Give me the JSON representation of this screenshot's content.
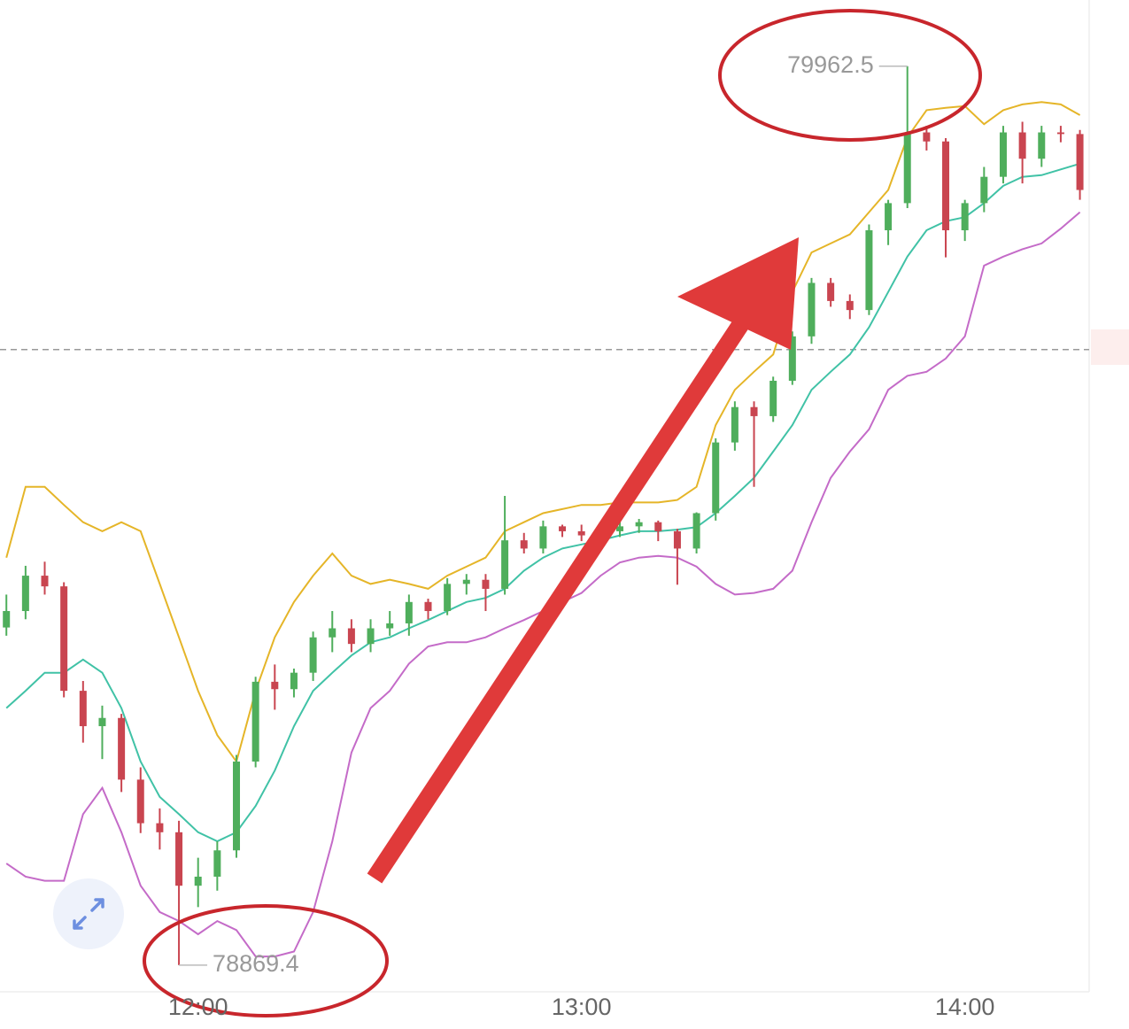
{
  "chart_data": {
    "type": "candlestick",
    "x": [
      "11:30",
      "11:33",
      "11:36",
      "11:39",
      "11:42",
      "11:45",
      "11:48",
      "11:51",
      "11:54",
      "11:57",
      "12:00",
      "12:03",
      "12:06",
      "12:09",
      "12:12",
      "12:15",
      "12:18",
      "12:21",
      "12:24",
      "12:27",
      "12:30",
      "12:33",
      "12:36",
      "12:39",
      "12:42",
      "12:45",
      "12:48",
      "12:51",
      "12:54",
      "12:57",
      "13:00",
      "13:03",
      "13:06",
      "13:09",
      "13:12",
      "13:15",
      "13:18",
      "13:21",
      "13:24",
      "13:27",
      "13:30",
      "13:33",
      "13:36",
      "13:39",
      "13:42",
      "13:45",
      "13:48",
      "13:51",
      "13:54",
      "13:57",
      "14:00",
      "14:03",
      "14:06",
      "14:09",
      "14:12",
      "14:15",
      "14:18"
    ],
    "open": [
      79280,
      79300,
      79343,
      79330,
      79203,
      79160,
      79170,
      79095,
      79042,
      79031,
      78966,
      78977,
      79009,
      79117,
      79214,
      79205,
      79225,
      79268,
      79279,
      79260,
      79279,
      79285,
      79311,
      79300,
      79333,
      79338,
      79327,
      79386,
      79376,
      79403,
      79397,
      79392,
      79397,
      79403,
      79408,
      79397,
      79376,
      79419,
      79505,
      79548,
      79537,
      79580,
      79634,
      79699,
      79677,
      79666,
      79763,
      79796,
      79882,
      79871,
      79763,
      79796,
      79828,
      79882,
      79850,
      79882,
      79880
    ],
    "high": [
      79320,
      79355,
      79360,
      79335,
      79215,
      79185,
      79175,
      79110,
      79060,
      79045,
      79000,
      79020,
      79125,
      79220,
      79235,
      79230,
      79275,
      79300,
      79290,
      79290,
      79300,
      79320,
      79315,
      79340,
      79345,
      79345,
      79440,
      79395,
      79410,
      79405,
      79405,
      79400,
      79410,
      79412,
      79410,
      79400,
      79420,
      79510,
      79555,
      79555,
      79585,
      79640,
      79705,
      79705,
      79685,
      79770,
      79800,
      79962.5,
      79890,
      79875,
      79800,
      79840,
      79890,
      79895,
      79890,
      79890,
      79885
    ],
    "low": [
      79270,
      79290,
      79320,
      79195,
      79140,
      79120,
      79080,
      79030,
      79010,
      78869.4,
      78940,
      78960,
      79000,
      79110,
      79180,
      79195,
      79215,
      79250,
      79250,
      79250,
      79270,
      79270,
      79290,
      79295,
      79320,
      79300,
      79320,
      79370,
      79370,
      79390,
      79385,
      79380,
      79390,
      79395,
      79385,
      79332,
      79370,
      79410,
      79495,
      79451,
      79530,
      79575,
      79625,
      79670,
      79655,
      79660,
      79745,
      79790,
      79860,
      79730,
      79750,
      79785,
      79820,
      79820,
      79840,
      79870,
      79800
    ],
    "close": [
      79300,
      79343,
      79330,
      79203,
      79160,
      79170,
      79095,
      79042,
      79031,
      78966,
      78977,
      79009,
      79117,
      79214,
      79205,
      79225,
      79268,
      79279,
      79260,
      79279,
      79285,
      79311,
      79300,
      79333,
      79338,
      79327,
      79386,
      79376,
      79403,
      79397,
      79392,
      79397,
      79403,
      79408,
      79397,
      79376,
      79419,
      79505,
      79548,
      79537,
      79580,
      79634,
      79699,
      79677,
      79666,
      79763,
      79796,
      79882,
      79871,
      79763,
      79796,
      79828,
      79882,
      79850,
      79882,
      79880,
      79812
    ],
    "up_color": "#4fae5c",
    "down_color": "#c94550",
    "lines": [
      {
        "color": "#e5b528",
        "values": [
          79365,
          79451,
          79451,
          79429,
          79408,
          79397,
          79408,
          79397,
          79333,
          79268,
          79203,
          79149,
          79117,
          79203,
          79268,
          79311,
          79343,
          79370,
          79343,
          79333,
          79338,
          79333,
          79327,
          79343,
          79354,
          79365,
          79397,
          79408,
          79419,
          79424,
          79429,
          79429,
          79432,
          79432,
          79432,
          79435,
          79451,
          79526,
          79569,
          79591,
          79612,
          79688,
          79736,
          79747,
          79758,
          79785,
          79812,
          79876,
          79909,
          79912,
          79914,
          79892,
          79909,
          79916,
          79919,
          79916,
          79903
        ]
      },
      {
        "color": "#40c2a6",
        "values": [
          79182,
          79203,
          79225,
          79225,
          79241,
          79225,
          79182,
          79117,
          79074,
          79053,
          79031,
          79020,
          79031,
          79063,
          79106,
          79160,
          79203,
          79225,
          79246,
          79262,
          79268,
          79279,
          79289,
          79300,
          79311,
          79316,
          79327,
          79349,
          79365,
          79376,
          79381,
          79386,
          79392,
          79397,
          79397,
          79399,
          79402,
          79419,
          79440,
          79462,
          79494,
          79526,
          79569,
          79591,
          79612,
          79645,
          79688,
          79731,
          79763,
          79774,
          79779,
          79796,
          79817,
          79828,
          79830,
          79837,
          79844
        ]
      },
      {
        "color": "#c46bc8",
        "values": [
          78993,
          78977,
          78972,
          78972,
          79053,
          79085,
          79031,
          78966,
          78934,
          78923,
          78907,
          78923,
          78912,
          78880,
          78880,
          78886,
          78934,
          79020,
          79128,
          79182,
          79203,
          79236,
          79257,
          79262,
          79262,
          79268,
          79279,
          79289,
          79300,
          79311,
          79322,
          79343,
          79359,
          79365,
          79367,
          79365,
          79354,
          79333,
          79320,
          79322,
          79327,
          79349,
          79408,
          79462,
          79494,
          79521,
          79569,
          79586,
          79591,
          79607,
          79634,
          79720,
          79731,
          79740,
          79747,
          79765,
          79785
        ]
      }
    ],
    "reference_line": 79618,
    "xlim": [
      "11:29",
      "14:20"
    ],
    "xticks": [
      "12:00",
      "13:00",
      "14:00"
    ],
    "ylim": [
      78837,
      80043
    ]
  }
}
